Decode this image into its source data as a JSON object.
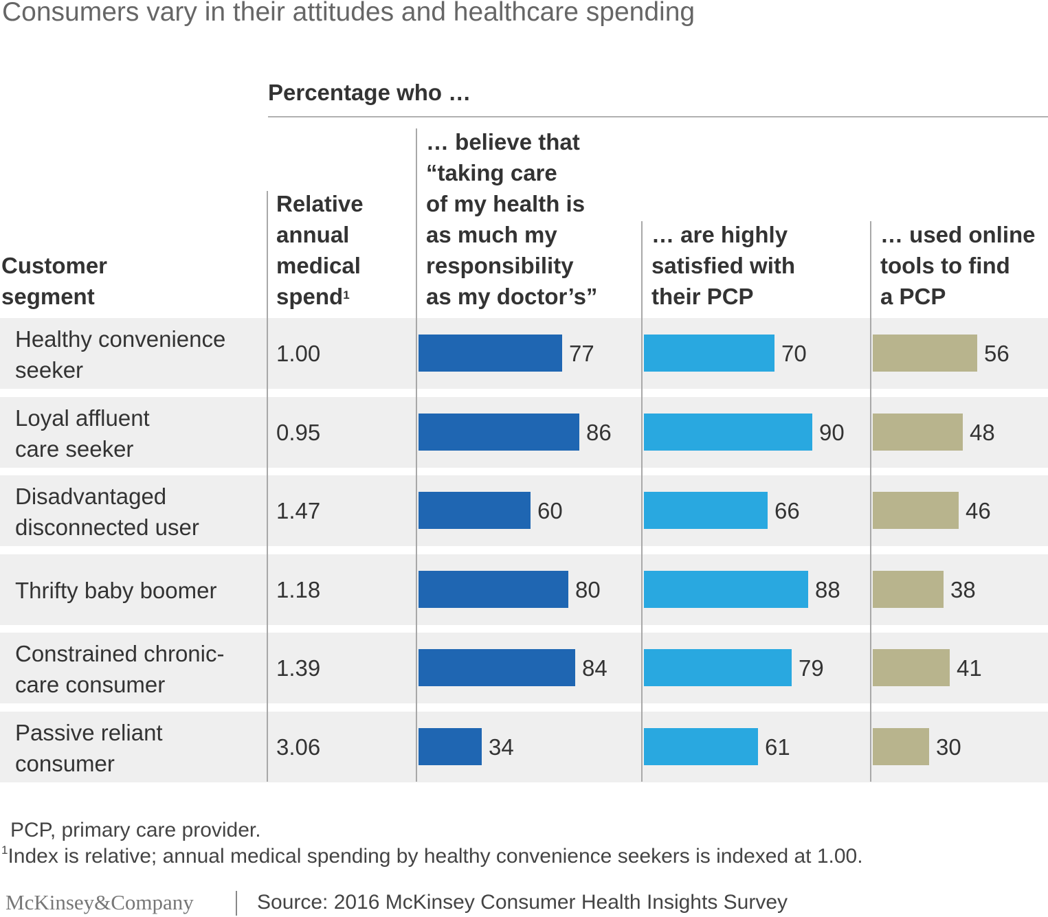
{
  "title": "Consumers vary in their attitudes and healthcare spending",
  "supertitle": "Percentage who …",
  "headers": {
    "segment": "Customer\nsegment",
    "spend": "Relative\nannual\nmedical\nspend",
    "spend_footnote_mark": "1",
    "col1": "… believe that\n“taking care\nof my health is\nas much my\nresponsibility\nas my doctor’s”",
    "col2": "… are highly\nsatisfied with\ntheir PCP",
    "col3": "… used online\ntools to find\na PCP"
  },
  "colors": {
    "col1": "#1f66b2",
    "col2": "#29a8e0",
    "col3": "#b8b48d",
    "row_bg": "#efefef"
  },
  "rows": [
    {
      "segment": "Healthy convenience\nseeker",
      "spend": "1.00",
      "v1": 77,
      "v2": 70,
      "v3": 56
    },
    {
      "segment": "Loyal affluent\ncare seeker",
      "spend": "0.95",
      "v1": 86,
      "v2": 90,
      "v3": 48
    },
    {
      "segment": "Disadvantaged\ndisconnected user",
      "spend": "1.47",
      "v1": 60,
      "v2": 66,
      "v3": 46
    },
    {
      "segment": "Thrifty baby boomer",
      "spend": "1.18",
      "v1": 80,
      "v2": 88,
      "v3": 38
    },
    {
      "segment": "Constrained chronic-\ncare consumer",
      "spend": "1.39",
      "v1": 84,
      "v2": 79,
      "v3": 41
    },
    {
      "segment": "Passive reliant\nconsumer",
      "spend": "3.06",
      "v1": 34,
      "v2": 61,
      "v3": 30
    }
  ],
  "chart_data": {
    "type": "bar",
    "title": "Consumers vary in their attitudes and healthcare spending",
    "categories": [
      "Healthy convenience seeker",
      "Loyal affluent care seeker",
      "Disadvantaged disconnected user",
      "Thrifty baby boomer",
      "Constrained chronic-care consumer",
      "Passive reliant consumer"
    ],
    "relative_annual_medical_spend": [
      1.0,
      0.95,
      1.47,
      1.18,
      1.39,
      3.06
    ],
    "series": [
      {
        "name": "… believe that “taking care of my health is as much my responsibility as my doctor’s”",
        "values": [
          77,
          86,
          60,
          80,
          84,
          34
        ]
      },
      {
        "name": "… are highly satisfied with their PCP",
        "values": [
          70,
          90,
          66,
          88,
          79,
          61
        ]
      },
      {
        "name": "… used online tools to find a PCP",
        "values": [
          56,
          48,
          46,
          38,
          41,
          30
        ]
      }
    ]
  },
  "footnotes": {
    "abbrev": "PCP, primary care provider.",
    "note_mark": "1",
    "note": "Index is relative; annual medical spending by healthy convenience seekers is indexed at 1.00."
  },
  "brand": "McKinsey&Company",
  "source": "Source: 2016 McKinsey Consumer Health Insights Survey"
}
